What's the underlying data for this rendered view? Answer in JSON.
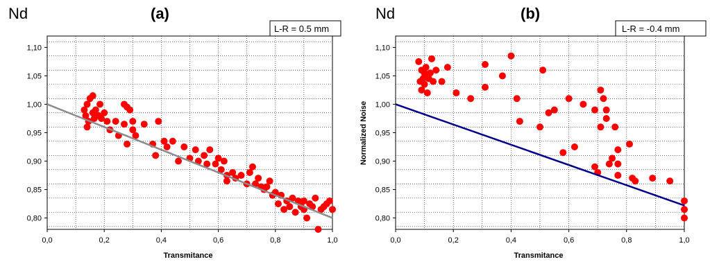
{
  "chart_data": [
    {
      "type": "scatter",
      "element_label": "Nd",
      "panel_label": "(a)",
      "annotation": "L-R = 0.5 mm",
      "xlabel": "Transmitance",
      "ylabel": "",
      "xlim": [
        0.0,
        1.0
      ],
      "ylim": [
        0.78,
        1.12
      ],
      "xticks": [
        "0,0",
        "0,2",
        "0,4",
        "0,6",
        "0,8",
        "1,0"
      ],
      "yticks": [
        "0,80",
        "0,85",
        "0,90",
        "0,95",
        "1,00",
        "1,05",
        "1,10"
      ],
      "grid": true,
      "colors": {
        "points": "#ff0000",
        "line": "#8c8c8c"
      },
      "fit_line": {
        "x": [
          0.0,
          1.0
        ],
        "y": [
          1.0,
          0.8
        ]
      },
      "points": [
        [
          0.13,
          0.99
        ],
        [
          0.135,
          0.98
        ],
        [
          0.14,
          1.0
        ],
        [
          0.14,
          0.96
        ],
        [
          0.145,
          0.97
        ],
        [
          0.15,
          1.01
        ],
        [
          0.16,
          0.985
        ],
        [
          0.16,
          1.015
        ],
        [
          0.165,
          0.975
        ],
        [
          0.17,
          0.99
        ],
        [
          0.18,
          0.98
        ],
        [
          0.185,
          1.0
        ],
        [
          0.19,
          0.975
        ],
        [
          0.2,
          0.985
        ],
        [
          0.21,
          0.97
        ],
        [
          0.22,
          0.955
        ],
        [
          0.24,
          0.97
        ],
        [
          0.25,
          0.945
        ],
        [
          0.27,
          0.965
        ],
        [
          0.27,
          1.0
        ],
        [
          0.28,
          0.93
        ],
        [
          0.28,
          0.995
        ],
        [
          0.29,
          0.99
        ],
        [
          0.3,
          0.97
        ],
        [
          0.3,
          0.955
        ],
        [
          0.31,
          0.945
        ],
        [
          0.34,
          0.965
        ],
        [
          0.37,
          0.93
        ],
        [
          0.38,
          0.91
        ],
        [
          0.39,
          0.97
        ],
        [
          0.41,
          0.935
        ],
        [
          0.42,
          0.925
        ],
        [
          0.44,
          0.935
        ],
        [
          0.46,
          0.9
        ],
        [
          0.48,
          0.925
        ],
        [
          0.5,
          0.905
        ],
        [
          0.52,
          0.92
        ],
        [
          0.53,
          0.9
        ],
        [
          0.55,
          0.91
        ],
        [
          0.56,
          0.895
        ],
        [
          0.57,
          0.92
        ],
        [
          0.59,
          0.895
        ],
        [
          0.6,
          0.905
        ],
        [
          0.61,
          0.885
        ],
        [
          0.62,
          0.9
        ],
        [
          0.63,
          0.875
        ],
        [
          0.63,
          0.865
        ],
        [
          0.65,
          0.88
        ],
        [
          0.66,
          0.87
        ],
        [
          0.68,
          0.875
        ],
        [
          0.7,
          0.86
        ],
        [
          0.71,
          0.88
        ],
        [
          0.72,
          0.89
        ],
        [
          0.73,
          0.86
        ],
        [
          0.74,
          0.87
        ],
        [
          0.75,
          0.855
        ],
        [
          0.76,
          0.85
        ],
        [
          0.77,
          0.855
        ],
        [
          0.78,
          0.865
        ],
        [
          0.79,
          0.84
        ],
        [
          0.8,
          0.845
        ],
        [
          0.81,
          0.825
        ],
        [
          0.82,
          0.84
        ],
        [
          0.83,
          0.815
        ],
        [
          0.84,
          0.83
        ],
        [
          0.85,
          0.82
        ],
        [
          0.86,
          0.835
        ],
        [
          0.87,
          0.81
        ],
        [
          0.88,
          0.83
        ],
        [
          0.89,
          0.82
        ],
        [
          0.9,
          0.815
        ],
        [
          0.9,
          0.83
        ],
        [
          0.91,
          0.8
        ],
        [
          0.92,
          0.825
        ],
        [
          0.93,
          0.82
        ],
        [
          0.94,
          0.835
        ],
        [
          0.95,
          0.78
        ],
        [
          0.96,
          0.815
        ],
        [
          0.97,
          0.82
        ],
        [
          0.98,
          0.825
        ],
        [
          0.99,
          0.83
        ],
        [
          1.0,
          0.815
        ]
      ]
    },
    {
      "type": "scatter",
      "element_label": "Nd",
      "panel_label": "(b)",
      "annotation": "L-R = -0.4 mm",
      "xlabel": "Transmitance",
      "ylabel": "Normalized Noise",
      "xlim": [
        0.0,
        1.0
      ],
      "ylim": [
        0.78,
        1.12
      ],
      "xticks": [
        "0,0",
        "0,2",
        "0,4",
        "0,6",
        "0,8",
        "1,0"
      ],
      "yticks": [
        "0,80",
        "0,85",
        "0,90",
        "0,95",
        "1,00",
        "1,05",
        "1,10"
      ],
      "grid": true,
      "colors": {
        "points": "#ff0000",
        "line": "#00008b"
      },
      "fit_line": {
        "x": [
          0.0,
          1.0
        ],
        "y": [
          1.0,
          0.822
        ]
      },
      "points": [
        [
          0.08,
          1.075
        ],
        [
          0.085,
          1.04
        ],
        [
          0.09,
          1.025
        ],
        [
          0.09,
          1.06
        ],
        [
          0.095,
          1.045
        ],
        [
          0.1,
          1.055
        ],
        [
          0.1,
          1.035
        ],
        [
          0.105,
          1.065
        ],
        [
          0.11,
          1.05
        ],
        [
          0.11,
          1.02
        ],
        [
          0.115,
          1.045
        ],
        [
          0.12,
          1.055
        ],
        [
          0.125,
          1.08
        ],
        [
          0.13,
          1.04
        ],
        [
          0.14,
          1.06
        ],
        [
          0.16,
          1.04
        ],
        [
          0.18,
          1.065
        ],
        [
          0.21,
          1.02
        ],
        [
          0.26,
          1.01
        ],
        [
          0.31,
          1.07
        ],
        [
          0.31,
          1.03
        ],
        [
          0.37,
          1.05
        ],
        [
          0.4,
          1.085
        ],
        [
          0.42,
          1.01
        ],
        [
          0.43,
          0.97
        ],
        [
          0.5,
          0.96
        ],
        [
          0.51,
          1.06
        ],
        [
          0.53,
          0.985
        ],
        [
          0.55,
          0.99
        ],
        [
          0.58,
          0.915
        ],
        [
          0.6,
          1.01
        ],
        [
          0.62,
          0.925
        ],
        [
          0.65,
          1.0
        ],
        [
          0.69,
          0.89
        ],
        [
          0.69,
          0.99
        ],
        [
          0.7,
          0.88
        ],
        [
          0.71,
          1.025
        ],
        [
          0.71,
          0.96
        ],
        [
          0.72,
          1.01
        ],
        [
          0.73,
          0.99
        ],
        [
          0.73,
          0.975
        ],
        [
          0.74,
          0.895
        ],
        [
          0.75,
          0.905
        ],
        [
          0.76,
          0.96
        ],
        [
          0.77,
          0.92
        ],
        [
          0.77,
          0.895
        ],
        [
          0.77,
          0.875
        ],
        [
          0.81,
          0.93
        ],
        [
          0.82,
          0.87
        ],
        [
          0.83,
          0.865
        ],
        [
          0.89,
          0.87
        ],
        [
          0.95,
          0.865
        ],
        [
          1.0,
          0.83
        ],
        [
          1.0,
          0.815
        ],
        [
          1.0,
          0.8
        ]
      ]
    }
  ]
}
